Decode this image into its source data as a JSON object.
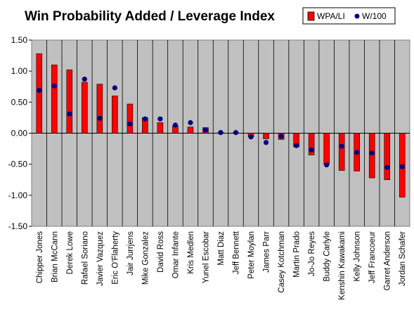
{
  "chart_data": {
    "type": "bar",
    "title": "Win Probability Added / Leverage Index",
    "xlabel": "",
    "ylabel": "",
    "ylim": [
      -1.5,
      1.5
    ],
    "yticks": [
      "1.50",
      "1.00",
      "0.50",
      "0.00",
      "-0.50",
      "-1.00",
      "-1.50"
    ],
    "grid": false,
    "legend": "top-right",
    "categories": [
      "Chipper Jones",
      "Brian McCann",
      "Derek Lowe",
      "Rafael Soriano",
      "Javier Vazquez",
      "Eric O'Flaherty",
      "Jair Jurrjens",
      "Mike Gonzalez",
      "David Ross",
      "Omar Infante",
      "Kris Medlen",
      "Yunel Escobar",
      "Matt Diaz",
      "Jeff Bennett",
      "Peter Moylan",
      "James Parr",
      "Casey Kotchman",
      "Martin Prado",
      "Jo-Jo Reyes",
      "Buddy Carlyle",
      "Kenshin Kawakami",
      "Kelly Johnson",
      "Jeff Francoeur",
      "Garret Anderson",
      "Jordan Schafer"
    ],
    "series": [
      {
        "name": "WPA/LI",
        "kind": "bar",
        "color": "#ff0000",
        "values": [
          1.28,
          1.1,
          1.02,
          0.82,
          0.79,
          0.6,
          0.47,
          0.25,
          0.17,
          0.12,
          0.1,
          0.09,
          0.01,
          0.01,
          -0.06,
          -0.09,
          -0.1,
          -0.22,
          -0.35,
          -0.5,
          -0.6,
          -0.61,
          -0.72,
          -0.75,
          -1.03
        ]
      },
      {
        "name": "W/100",
        "kind": "point",
        "color": "#000080",
        "values": [
          0.69,
          0.76,
          0.31,
          0.87,
          0.24,
          0.73,
          0.15,
          0.23,
          0.23,
          0.13,
          0.17,
          0.05,
          0.01,
          0.01,
          -0.06,
          -0.15,
          -0.05,
          -0.2,
          -0.27,
          -0.51,
          -0.21,
          -0.31,
          -0.32,
          -0.55,
          -0.54
        ]
      }
    ]
  }
}
